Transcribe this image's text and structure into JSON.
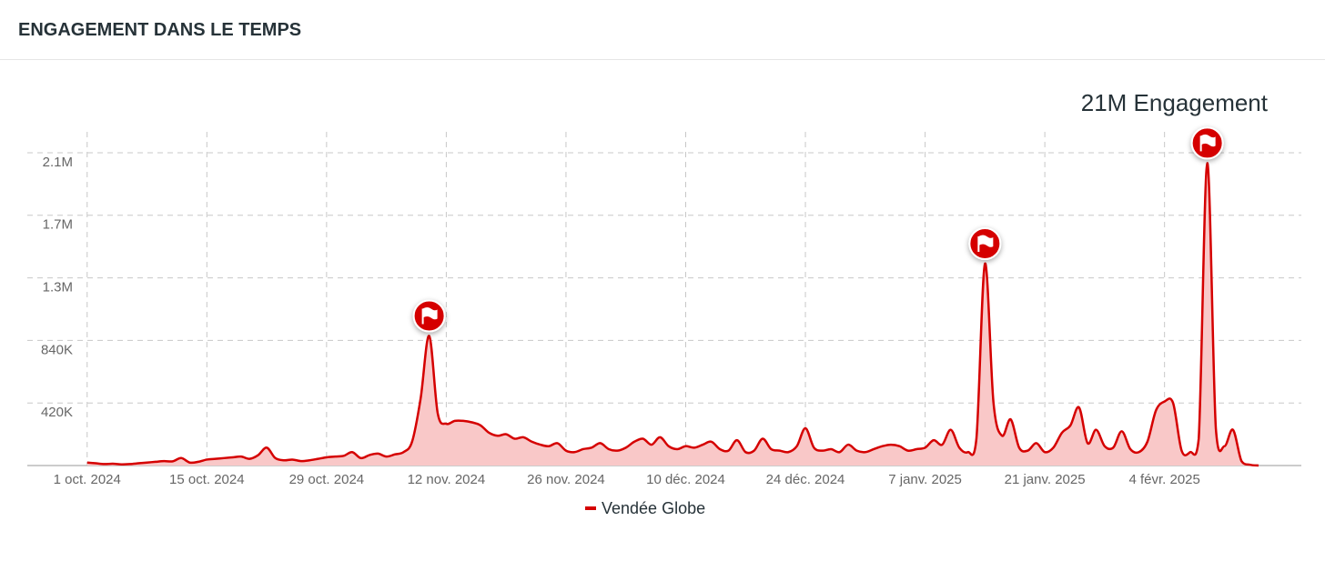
{
  "header": {
    "title": "ENGAGEMENT DANS LE TEMPS"
  },
  "chart_data": {
    "type": "area",
    "annotation": "21M Engagement",
    "x": [
      "2024-10-01",
      "2024-10-02",
      "2024-10-03",
      "2024-10-04",
      "2024-10-05",
      "2024-10-06",
      "2024-10-07",
      "2024-10-08",
      "2024-10-09",
      "2024-10-10",
      "2024-10-11",
      "2024-10-12",
      "2024-10-13",
      "2024-10-14",
      "2024-10-15",
      "2024-10-16",
      "2024-10-17",
      "2024-10-18",
      "2024-10-19",
      "2024-10-20",
      "2024-10-21",
      "2024-10-22",
      "2024-10-23",
      "2024-10-24",
      "2024-10-25",
      "2024-10-26",
      "2024-10-27",
      "2024-10-28",
      "2024-10-29",
      "2024-10-30",
      "2024-10-31",
      "2024-11-01",
      "2024-11-02",
      "2024-11-03",
      "2024-11-04",
      "2024-11-05",
      "2024-11-06",
      "2024-11-07",
      "2024-11-08",
      "2024-11-09",
      "2024-11-10",
      "2024-11-11",
      "2024-11-12",
      "2024-11-13",
      "2024-11-14",
      "2024-11-15",
      "2024-11-16",
      "2024-11-17",
      "2024-11-18",
      "2024-11-19",
      "2024-11-20",
      "2024-11-21",
      "2024-11-22",
      "2024-11-23",
      "2024-11-24",
      "2024-11-25",
      "2024-11-26",
      "2024-11-27",
      "2024-11-28",
      "2024-11-29",
      "2024-11-30",
      "2024-12-01",
      "2024-12-02",
      "2024-12-03",
      "2024-12-04",
      "2024-12-05",
      "2024-12-06",
      "2024-12-07",
      "2024-12-08",
      "2024-12-09",
      "2024-12-10",
      "2024-12-11",
      "2024-12-12",
      "2024-12-13",
      "2024-12-14",
      "2024-12-15",
      "2024-12-16",
      "2024-12-17",
      "2024-12-18",
      "2024-12-19",
      "2024-12-20",
      "2024-12-21",
      "2024-12-22",
      "2024-12-23",
      "2024-12-24",
      "2024-12-25",
      "2024-12-26",
      "2024-12-27",
      "2024-12-28",
      "2024-12-29",
      "2024-12-30",
      "2024-12-31",
      "2025-01-01",
      "2025-01-02",
      "2025-01-03",
      "2025-01-04",
      "2025-01-05",
      "2025-01-06",
      "2025-01-07",
      "2025-01-08",
      "2025-01-09",
      "2025-01-10",
      "2025-01-11",
      "2025-01-12",
      "2025-01-13",
      "2025-01-14",
      "2025-01-15",
      "2025-01-16",
      "2025-01-17",
      "2025-01-18",
      "2025-01-19",
      "2025-01-20",
      "2025-01-21",
      "2025-01-22",
      "2025-01-23",
      "2025-01-24",
      "2025-01-25",
      "2025-01-26",
      "2025-01-27",
      "2025-01-28",
      "2025-01-29",
      "2025-01-30",
      "2025-01-31",
      "2025-02-01",
      "2025-02-02",
      "2025-02-03",
      "2025-02-04",
      "2025-02-05",
      "2025-02-06",
      "2025-02-07",
      "2025-02-08",
      "2025-02-09",
      "2025-02-10",
      "2025-02-11",
      "2025-02-12",
      "2025-02-13",
      "2025-02-14",
      "2025-02-15"
    ],
    "series": [
      {
        "name": "Vendée Globe",
        "color": "#d50000",
        "fill": "#f9c8c8",
        "values": [
          20000,
          15000,
          10000,
          12000,
          8000,
          10000,
          15000,
          20000,
          25000,
          30000,
          28000,
          50000,
          20000,
          25000,
          40000,
          45000,
          50000,
          55000,
          60000,
          45000,
          70000,
          120000,
          50000,
          35000,
          40000,
          30000,
          35000,
          45000,
          55000,
          60000,
          65000,
          90000,
          50000,
          70000,
          80000,
          60000,
          75000,
          90000,
          160000,
          450000,
          870000,
          350000,
          280000,
          300000,
          300000,
          290000,
          270000,
          220000,
          200000,
          210000,
          180000,
          190000,
          160000,
          140000,
          130000,
          150000,
          100000,
          90000,
          110000,
          120000,
          150000,
          110000,
          100000,
          120000,
          160000,
          180000,
          140000,
          190000,
          130000,
          110000,
          130000,
          120000,
          140000,
          160000,
          110000,
          100000,
          170000,
          90000,
          100000,
          180000,
          110000,
          100000,
          90000,
          130000,
          250000,
          120000,
          100000,
          110000,
          90000,
          140000,
          100000,
          90000,
          110000,
          130000,
          140000,
          130000,
          100000,
          110000,
          120000,
          170000,
          140000,
          240000,
          120000,
          90000,
          180000,
          1355000,
          420000,
          200000,
          310000,
          120000,
          100000,
          150000,
          90000,
          120000,
          220000,
          270000,
          390000,
          150000,
          240000,
          130000,
          120000,
          230000,
          110000,
          90000,
          160000,
          370000,
          430000,
          420000,
          100000,
          90000,
          180000,
          2030000,
          250000,
          130000,
          240000,
          30000,
          5000,
          0
        ]
      }
    ],
    "xlim": [
      "2024-09-24",
      "2025-02-20"
    ],
    "xticks": [
      {
        "value": "2024-10-01",
        "label": "1 oct. 2024"
      },
      {
        "value": "2024-10-15",
        "label": "15 oct. 2024"
      },
      {
        "value": "2024-10-29",
        "label": "29 oct. 2024"
      },
      {
        "value": "2024-11-12",
        "label": "12 nov. 2024"
      },
      {
        "value": "2024-11-26",
        "label": "26 nov. 2024"
      },
      {
        "value": "2024-12-10",
        "label": "10 déc. 2024"
      },
      {
        "value": "2024-12-24",
        "label": "24 déc. 2024"
      },
      {
        "value": "2025-01-07",
        "label": "7 janv. 2025"
      },
      {
        "value": "2025-01-21",
        "label": "21 janv. 2025"
      },
      {
        "value": "2025-02-04",
        "label": "4 févr. 2025"
      }
    ],
    "ylim": [
      0,
      2240000
    ],
    "yticks": [
      {
        "value": 420000,
        "label": "420K"
      },
      {
        "value": 840000,
        "label": "840K"
      },
      {
        "value": 1260000,
        "label": "1.3M"
      },
      {
        "value": 1680000,
        "label": "1.7M"
      },
      {
        "value": 2100000,
        "label": "2.1M"
      }
    ],
    "grid": true,
    "legend": "bottom"
  }
}
